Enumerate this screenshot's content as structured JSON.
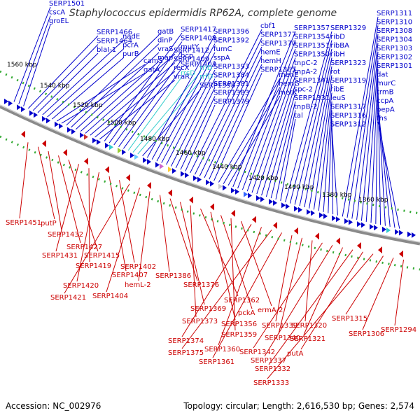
{
  "title": "Staphylococcus epidermidis RP62A, complete genome",
  "accession": "Accession: NC_002976",
  "summary": "Topology: circular; Length: 2,616,530 bp; Genes: 2,574",
  "kbp_labels": [
    "1560 kbp",
    "1540 kbp",
    "1520 kbp",
    "1500 kbp",
    "1480 kbp",
    "1460 kbp",
    "1440 kbp",
    "1420 kbp",
    "1400 kbp",
    "1380 kbp",
    "1360 kbp"
  ],
  "colors": {
    "forward": "#0000cc",
    "reverse": "#cc0000",
    "cyan": "#33cccc",
    "track": "#999999",
    "dots": "#33aa33"
  },
  "top_labels": [
    {
      "text": "SERP1501",
      "color": "blue"
    },
    {
      "text": "cscA",
      "color": "blue"
    },
    {
      "text": "groEL",
      "color": "blue"
    },
    {
      "text": "SERP1466",
      "color": "blue"
    },
    {
      "text": "SERP1464",
      "color": "blue"
    },
    {
      "text": "blaI-1",
      "color": "blue"
    },
    {
      "text": "nadE",
      "color": "blue"
    },
    {
      "text": "pcrA",
      "color": "blue"
    },
    {
      "text": "purB",
      "color": "blue"
    },
    {
      "text": "camS",
      "color": "blue"
    },
    {
      "text": "gatA",
      "color": "blue"
    },
    {
      "text": "gatB",
      "color": "blue"
    },
    {
      "text": "dinP",
      "color": "blue"
    },
    {
      "text": "vraS",
      "color": "blue"
    },
    {
      "text": "map",
      "color": "blue"
    },
    {
      "text": "SERP1412",
      "color": "blue"
    },
    {
      "text": "SERP1409",
      "color": "blue"
    },
    {
      "text": "recX",
      "color": "blue"
    },
    {
      "text": "vraR",
      "color": "blue"
    },
    {
      "text": "SERP1417",
      "color": "blue"
    },
    {
      "text": "SERP1408",
      "color": "blue"
    },
    {
      "text": "mutY",
      "color": "blue"
    },
    {
      "text": "bcp",
      "color": "blue"
    },
    {
      "text": "SERP1403",
      "color": "blue"
    },
    {
      "text": "rrsD",
      "color": "cyan"
    },
    {
      "text": "rrlD",
      "color": "cyan"
    },
    {
      "text": "rrfD",
      "color": "cyan"
    },
    {
      "text": "SERP1398",
      "color": "blue"
    },
    {
      "text": "SERP1396",
      "color": "blue"
    },
    {
      "text": "SERP1392",
      "color": "blue"
    },
    {
      "text": "fumC",
      "color": "blue"
    },
    {
      "text": "sspA",
      "color": "blue"
    },
    {
      "text": "SERP1393",
      "color": "blue"
    },
    {
      "text": "SERP1384",
      "color": "blue"
    },
    {
      "text": "SERP1381",
      "color": "blue"
    },
    {
      "text": "SERP1383",
      "color": "blue"
    },
    {
      "text": "SERP1379",
      "color": "blue"
    },
    {
      "text": "cbf1",
      "color": "blue"
    },
    {
      "text": "SERP1377",
      "color": "blue"
    },
    {
      "text": "SERP1370",
      "color": "blue"
    },
    {
      "text": "hemE",
      "color": "blue"
    },
    {
      "text": "hemH",
      "color": "blue"
    },
    {
      "text": "SERP1365",
      "color": "blue"
    },
    {
      "text": "menE",
      "color": "blue"
    },
    {
      "text": "hemG",
      "color": "blue"
    },
    {
      "text": "metK",
      "color": "blue"
    },
    {
      "text": "SERP1357",
      "color": "blue"
    },
    {
      "text": "SERP1354",
      "color": "blue"
    },
    {
      "text": "SERP1351",
      "color": "blue"
    },
    {
      "text": "SERP1350",
      "color": "blue"
    },
    {
      "text": "tnpC-2",
      "color": "blue"
    },
    {
      "text": "tnpA-2",
      "color": "blue"
    },
    {
      "text": "SERP1341",
      "color": "blue"
    },
    {
      "text": "spc-2",
      "color": "blue"
    },
    {
      "text": "SERP1331",
      "color": "blue"
    },
    {
      "text": "tnpB-2",
      "color": "blue"
    },
    {
      "text": "tal",
      "color": "blue"
    },
    {
      "text": "SERP1329",
      "color": "blue"
    },
    {
      "text": "ribD",
      "color": "blue"
    },
    {
      "text": "ribBA",
      "color": "blue"
    },
    {
      "text": "ribH",
      "color": "blue"
    },
    {
      "text": "SERP1323",
      "color": "blue"
    },
    {
      "text": "rot",
      "color": "blue"
    },
    {
      "text": "SERP1319",
      "color": "blue"
    },
    {
      "text": "ribE",
      "color": "blue"
    },
    {
      "text": "leuS",
      "color": "blue"
    },
    {
      "text": "SERP1317",
      "color": "blue"
    },
    {
      "text": "SERP1316",
      "color": "blue"
    },
    {
      "text": "SERP1312",
      "color": "blue"
    },
    {
      "text": "SERP1311",
      "color": "blue"
    },
    {
      "text": "SERP1310",
      "color": "blue"
    },
    {
      "text": "SERP1308",
      "color": "blue"
    },
    {
      "text": "SERP1304",
      "color": "blue"
    },
    {
      "text": "SERP1303",
      "color": "blue"
    },
    {
      "text": "SERP1302",
      "color": "blue"
    },
    {
      "text": "SERP1301",
      "color": "blue"
    },
    {
      "text": "dat",
      "color": "blue"
    },
    {
      "text": "murC",
      "color": "blue"
    },
    {
      "text": "trmB",
      "color": "blue"
    },
    {
      "text": "ccpA",
      "color": "blue"
    },
    {
      "text": "pepA",
      "color": "blue"
    },
    {
      "text": "fhs",
      "color": "blue"
    }
  ],
  "bottom_labels": [
    "SERP1451",
    "putP",
    "SERP1432",
    "SERP1427",
    "SERP1415",
    "SERP1431",
    "SERP1419",
    "SERP1420",
    "SERP1407",
    "SERP1402",
    "SERP1421",
    "SERP1404",
    "hemL-2",
    "SERP1386",
    "SERP1376",
    "SERP1369",
    "SERP1373",
    "SERP1362",
    "SERP1356",
    "pckA",
    "SERP1359",
    "ermA-2",
    "SERP1374",
    "SERP1360",
    "SERP1375",
    "SERP1361",
    "SERP1339",
    "SERP1340",
    "SERP1320",
    "SERP1342",
    "SERP1337",
    "SERP1321",
    "SERP1332",
    "putA",
    "SERP1333",
    "SERP1315",
    "SERP1306",
    "SERP1294"
  ]
}
